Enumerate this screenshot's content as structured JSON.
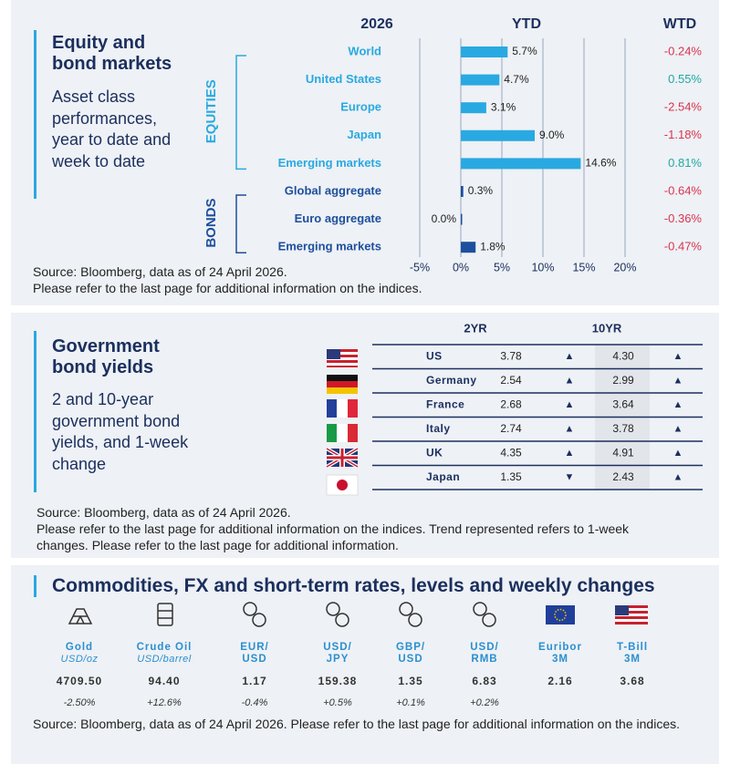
{
  "equity": {
    "title": "Equity and bond markets",
    "subtitle": "Asset class performances, year to date and week to date",
    "source": [
      "Source: Bloomberg, data as of 24 April 2026.",
      "Please refer to the last page for additional information on the indices."
    ]
  },
  "chart_data": {
    "type": "bar",
    "orientation": "horizontal",
    "header": "2026",
    "title": "YTD",
    "wtd_title": "WTD",
    "series": [
      {
        "name": "EQUITIES",
        "color": "#29a9e1",
        "categories": [
          "World",
          "United States",
          "Europe",
          "Japan",
          "Emerging markets"
        ],
        "values": [
          5.7,
          4.7,
          3.1,
          9.0,
          14.6
        ],
        "value_labels": [
          "5.7%",
          "4.7%",
          "3.1%",
          "9.0%",
          "14.6%"
        ],
        "wtd_values": [
          -0.24,
          0.55,
          -2.54,
          -1.18,
          0.81
        ],
        "wtd_value_labels": [
          "-0.24%",
          "0.55%",
          "-2.54%",
          "-1.18%",
          "0.81%"
        ]
      },
      {
        "name": "BONDS",
        "color": "#1d4f9e",
        "categories": [
          "Global aggregate",
          "Euro aggregate",
          "Emerging markets"
        ],
        "values": [
          0.3,
          0.0,
          1.8
        ],
        "value_labels": [
          "0.3%",
          "0.0%",
          "1.8%"
        ],
        "wtd_values": [
          -0.64,
          -0.36,
          -0.47
        ],
        "wtd_value_labels": [
          "-0.64%",
          "-0.36%",
          "-0.47%"
        ]
      }
    ],
    "wtd_colors": {
      "negative": "#d9344f",
      "positive": "#1fa9a3"
    },
    "xlim": [
      -5,
      20
    ],
    "xticks": [
      {
        "value": -5,
        "label": "-5%"
      },
      {
        "value": 0,
        "label": "0%"
      },
      {
        "value": 5,
        "label": "5%"
      },
      {
        "value": 10,
        "label": "10%"
      },
      {
        "value": 15,
        "label": "15%"
      },
      {
        "value": 20,
        "label": "20%"
      }
    ],
    "grid": true
  },
  "gov": {
    "title": "Government bond yields",
    "subtitle": "2 and 10-year government bond yields, and 1-week change",
    "headers": [
      "2YR",
      "10YR"
    ],
    "rows": [
      [
        "US",
        "3.78",
        "▲",
        "4.30",
        "▲"
      ],
      [
        "Germany",
        "2.54",
        "▲",
        "2.99",
        "▲"
      ],
      [
        "France",
        "2.68",
        "▲",
        "3.64",
        "▲"
      ],
      [
        "Italy",
        "2.74",
        "▲",
        "3.78",
        "▲"
      ],
      [
        "UK",
        "4.35",
        "▲",
        "4.91",
        "▲"
      ],
      [
        "Japan",
        "1.35",
        "▼",
        "2.43",
        "▲"
      ]
    ],
    "source": [
      "Source: Bloomberg, data as of 24 April 2026.",
      "Please refer to the last page for additional information on the indices. Trend represented refers to 1-week changes. Please refer to the last page for additional information."
    ]
  },
  "markets": {
    "title": "Commodities, FX and short-term rates, levels and weekly changes",
    "items": [
      {
        "name": "Gold",
        "unit": "USD/oz",
        "level": "4709.50",
        "change": "-2.50%"
      },
      {
        "name": "Crude Oil",
        "unit": "USD/barrel",
        "level": "94.40",
        "change": "+12.6%"
      },
      {
        "name": "EUR/",
        "line2": "USD",
        "level": "1.17",
        "change": "-0.4%"
      },
      {
        "name": "USD/",
        "line2": "JPY",
        "level": "159.38",
        "change": "+0.5%"
      },
      {
        "name": "GBP/",
        "line2": "USD",
        "level": "1.35",
        "change": "+0.1%"
      },
      {
        "name": "USD/",
        "line2": "RMB",
        "level": "6.83",
        "change": "+0.2%"
      },
      {
        "name": "Euribor",
        "line2": "3M",
        "level": "2.16"
      },
      {
        "name": "T-Bill",
        "line2": "3M",
        "level": "3.68"
      }
    ],
    "source": "Source: Bloomberg, data as of 24 April 2026. Please refer to the last page for additional information on the indices."
  }
}
